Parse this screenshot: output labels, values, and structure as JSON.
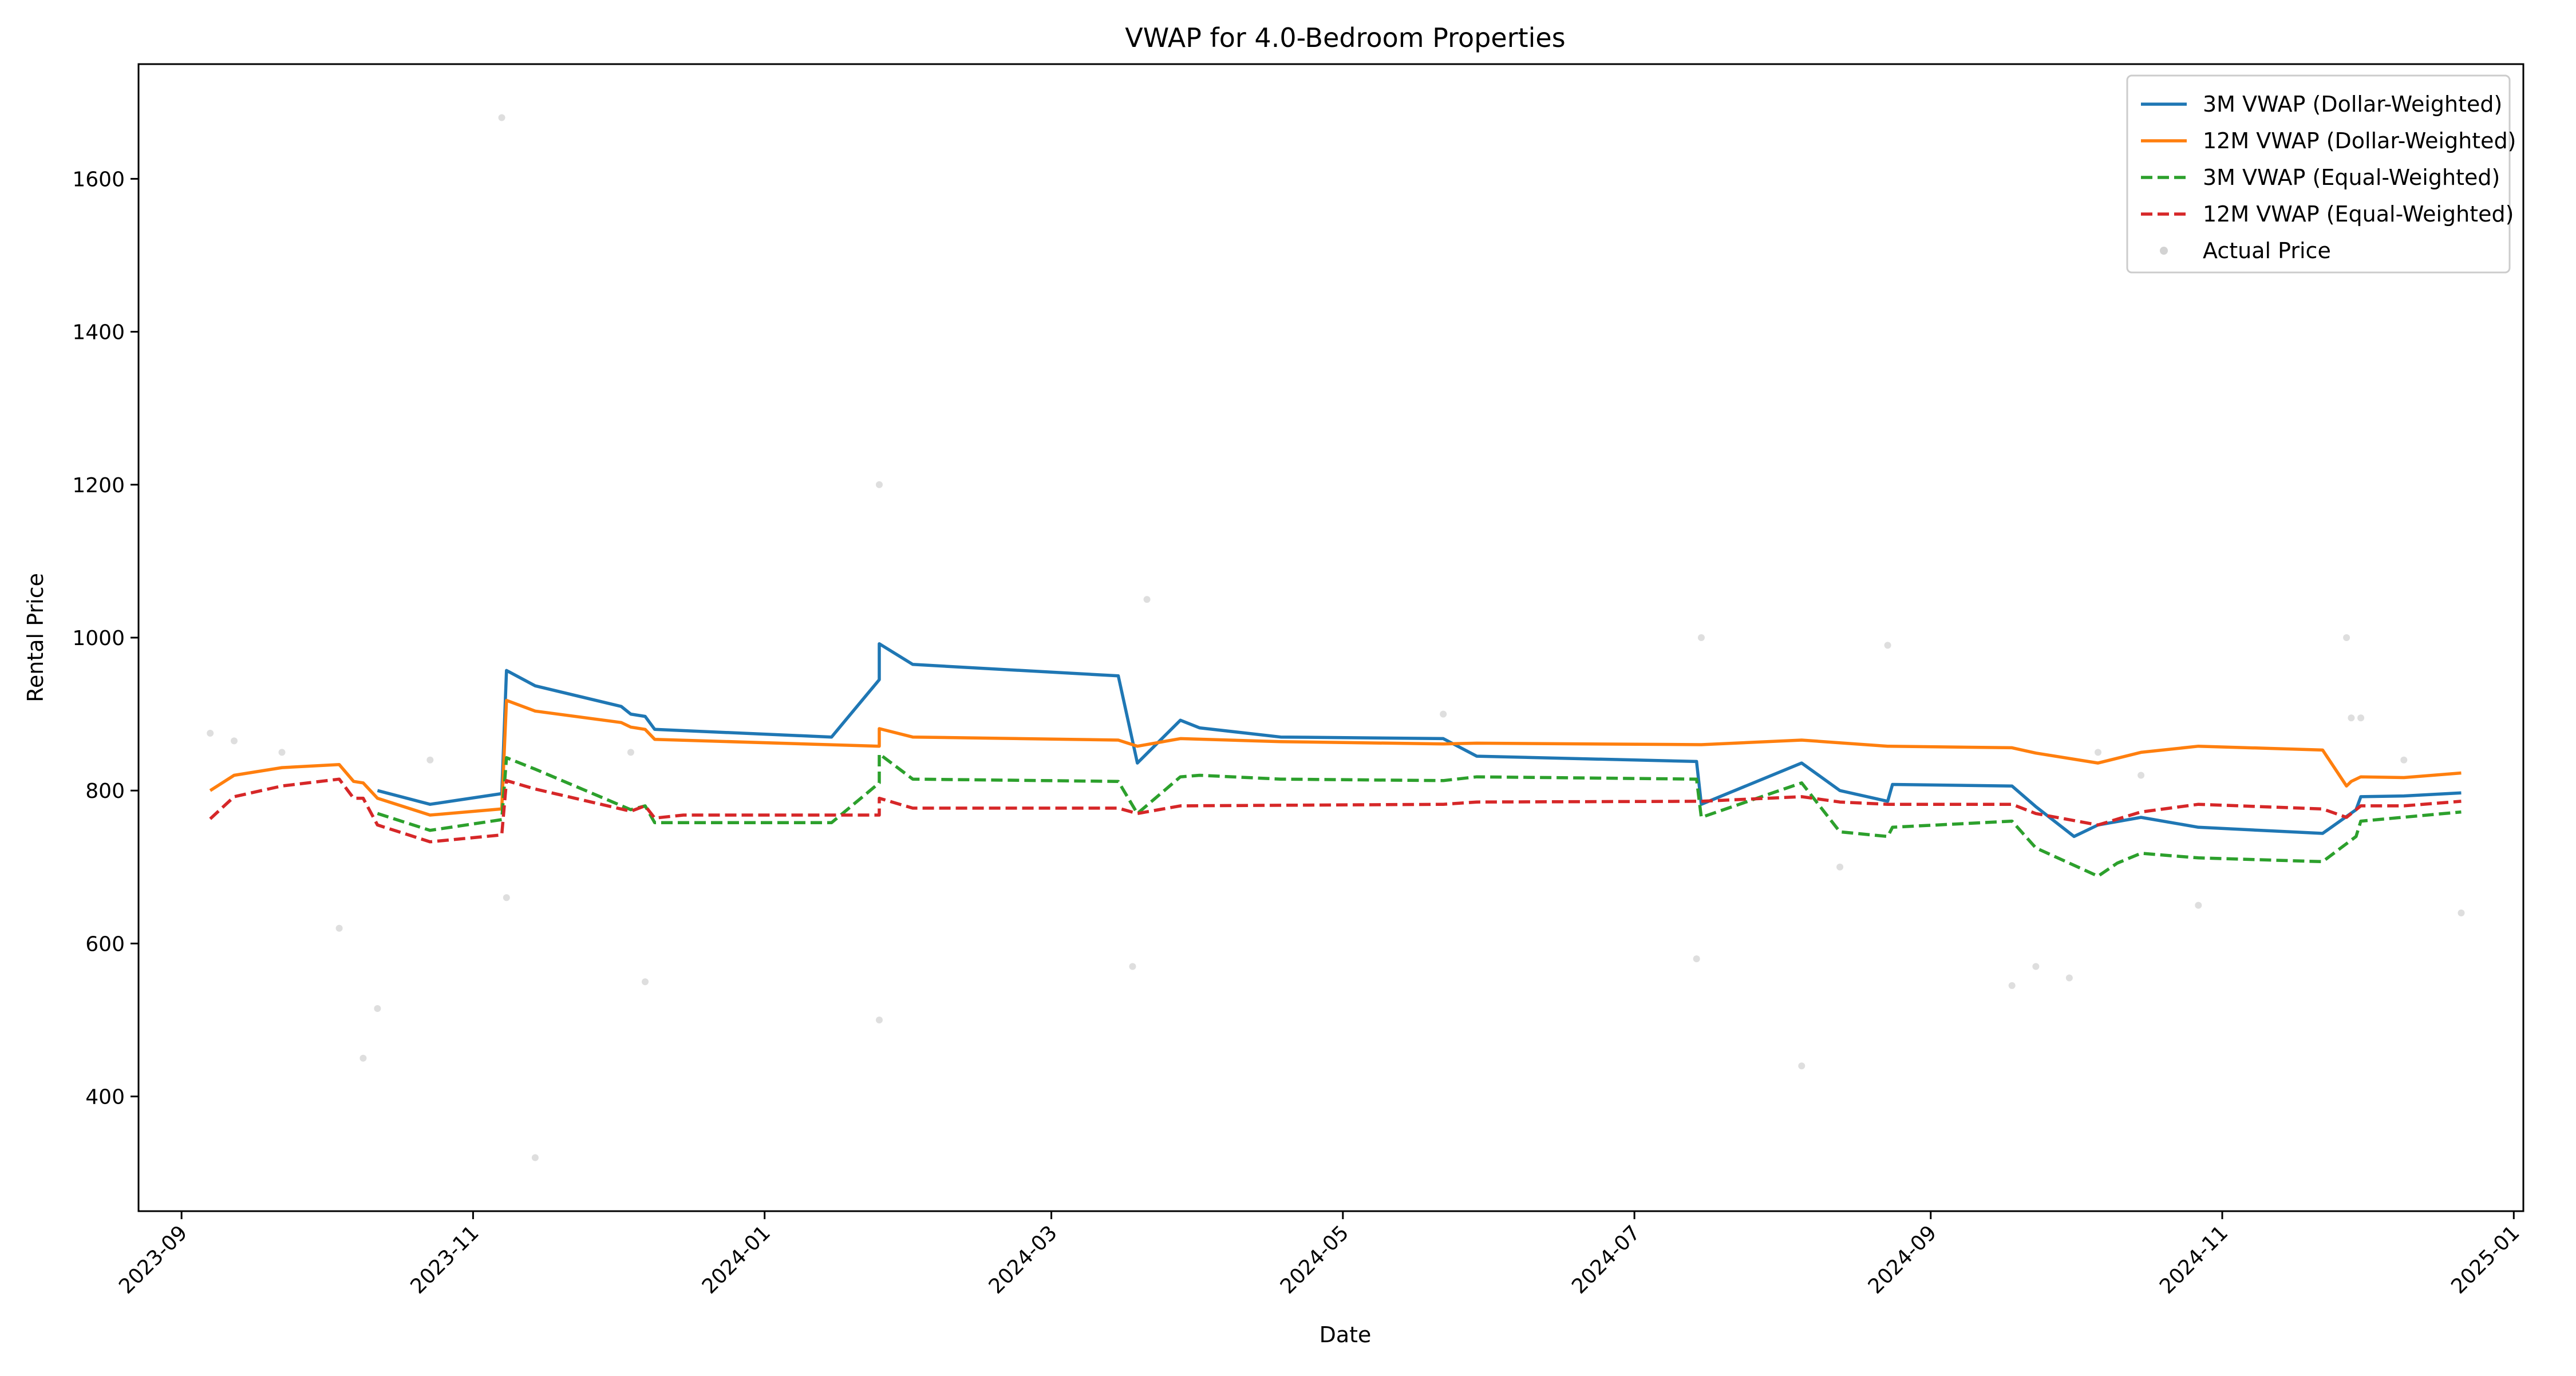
{
  "chart_data": {
    "type": "line",
    "title": "VWAP for 4.0-Bedroom Properties",
    "xlabel": "Date",
    "ylabel": "Rental Price",
    "x_axis_type": "date",
    "xlim": [
      "2023-08-23",
      "2025-01-03"
    ],
    "ylim": [
      250,
      1750
    ],
    "x_ticks": [
      "2023-09",
      "2023-11",
      "2024-01",
      "2024-03",
      "2024-05",
      "2024-07",
      "2024-09",
      "2024-11",
      "2025-01"
    ],
    "y_ticks": [
      400,
      600,
      800,
      1000,
      1200,
      1400,
      1600
    ],
    "grid": false,
    "legend_position": "top-right",
    "series": [
      {
        "name": "3M VWAP (Dollar-Weighted)",
        "style": "solid",
        "color": "#1f77b4",
        "points": [
          [
            "2023-10-12",
            800
          ],
          [
            "2023-10-23",
            782
          ],
          [
            "2023-11-07",
            796
          ],
          [
            "2023-11-08",
            957
          ],
          [
            "2023-11-14",
            937
          ],
          [
            "2023-12-02",
            910
          ],
          [
            "2023-12-04",
            900
          ],
          [
            "2023-12-07",
            897
          ],
          [
            "2023-12-09",
            880
          ],
          [
            "2024-01-15",
            870
          ],
          [
            "2024-01-25",
            945
          ],
          [
            "2024-01-25",
            992
          ],
          [
            "2024-02-01",
            965
          ],
          [
            "2024-03-15",
            950
          ],
          [
            "2024-03-19",
            836
          ],
          [
            "2024-03-28",
            892
          ],
          [
            "2024-04-01",
            882
          ],
          [
            "2024-04-18",
            870
          ],
          [
            "2024-05-22",
            868
          ],
          [
            "2024-05-29",
            845
          ],
          [
            "2024-07-14",
            838
          ],
          [
            "2024-07-15",
            782
          ],
          [
            "2024-08-05",
            836
          ],
          [
            "2024-08-13",
            800
          ],
          [
            "2024-08-23",
            786
          ],
          [
            "2024-08-24",
            808
          ],
          [
            "2024-09-18",
            806
          ],
          [
            "2024-09-23",
            779
          ],
          [
            "2024-10-01",
            740
          ],
          [
            "2024-10-06",
            755
          ],
          [
            "2024-10-15",
            765
          ],
          [
            "2024-10-27",
            752
          ],
          [
            "2024-11-22",
            744
          ],
          [
            "2024-11-29",
            775
          ],
          [
            "2024-11-30",
            792
          ],
          [
            "2024-12-09",
            793
          ],
          [
            "2024-12-21",
            797
          ]
        ]
      },
      {
        "name": "12M VWAP (Dollar-Weighted)",
        "style": "solid",
        "color": "#ff7f0e",
        "points": [
          [
            "2023-09-07",
            800
          ],
          [
            "2023-09-12",
            820
          ],
          [
            "2023-09-22",
            830
          ],
          [
            "2023-10-04",
            834
          ],
          [
            "2023-10-07",
            812
          ],
          [
            "2023-10-09",
            810
          ],
          [
            "2023-10-12",
            790
          ],
          [
            "2023-10-23",
            768
          ],
          [
            "2023-11-07",
            776
          ],
          [
            "2023-11-08",
            918
          ],
          [
            "2023-11-14",
            904
          ],
          [
            "2023-12-02",
            889
          ],
          [
            "2023-12-04",
            883
          ],
          [
            "2023-12-07",
            880
          ],
          [
            "2023-12-09",
            867
          ],
          [
            "2024-01-25",
            858
          ],
          [
            "2024-01-25",
            881
          ],
          [
            "2024-02-01",
            870
          ],
          [
            "2024-03-15",
            866
          ],
          [
            "2024-03-19",
            858
          ],
          [
            "2024-03-28",
            868
          ],
          [
            "2024-04-18",
            864
          ],
          [
            "2024-05-22",
            861
          ],
          [
            "2024-05-29",
            862
          ],
          [
            "2024-07-15",
            860
          ],
          [
            "2024-08-05",
            866
          ],
          [
            "2024-08-23",
            858
          ],
          [
            "2024-09-18",
            856
          ],
          [
            "2024-09-23",
            849
          ],
          [
            "2024-10-06",
            836
          ],
          [
            "2024-10-15",
            850
          ],
          [
            "2024-10-27",
            858
          ],
          [
            "2024-11-22",
            853
          ],
          [
            "2024-11-27",
            806
          ],
          [
            "2024-11-28",
            812
          ],
          [
            "2024-11-30",
            818
          ],
          [
            "2024-12-09",
            817
          ],
          [
            "2024-12-21",
            823
          ]
        ]
      },
      {
        "name": "3M VWAP (Equal-Weighted)",
        "style": "dashed",
        "color": "#2ca02c",
        "points": [
          [
            "2023-10-12",
            770
          ],
          [
            "2023-10-23",
            748
          ],
          [
            "2023-11-07",
            762
          ],
          [
            "2023-11-08",
            843
          ],
          [
            "2023-11-14",
            828
          ],
          [
            "2023-12-04",
            775
          ],
          [
            "2023-12-07",
            780
          ],
          [
            "2023-12-09",
            758
          ],
          [
            "2024-01-15",
            758
          ],
          [
            "2024-01-25",
            810
          ],
          [
            "2024-01-25",
            848
          ],
          [
            "2024-02-01",
            815
          ],
          [
            "2024-03-15",
            812
          ],
          [
            "2024-03-19",
            770
          ],
          [
            "2024-03-28",
            818
          ],
          [
            "2024-04-01",
            820
          ],
          [
            "2024-04-18",
            815
          ],
          [
            "2024-05-22",
            813
          ],
          [
            "2024-05-29",
            818
          ],
          [
            "2024-07-14",
            815
          ],
          [
            "2024-07-15",
            765
          ],
          [
            "2024-08-05",
            810
          ],
          [
            "2024-08-13",
            746
          ],
          [
            "2024-08-23",
            740
          ],
          [
            "2024-08-24",
            752
          ],
          [
            "2024-09-18",
            760
          ],
          [
            "2024-09-23",
            725
          ],
          [
            "2024-10-06",
            688
          ],
          [
            "2024-10-10",
            705
          ],
          [
            "2024-10-15",
            718
          ],
          [
            "2024-10-27",
            712
          ],
          [
            "2024-11-22",
            707
          ],
          [
            "2024-11-29",
            740
          ],
          [
            "2024-11-30",
            760
          ],
          [
            "2024-12-21",
            772
          ]
        ]
      },
      {
        "name": "12M VWAP (Equal-Weighted)",
        "style": "dashed",
        "color": "#d62728",
        "points": [
          [
            "2023-09-07",
            763
          ],
          [
            "2023-09-12",
            792
          ],
          [
            "2023-09-22",
            806
          ],
          [
            "2023-10-04",
            815
          ],
          [
            "2023-10-07",
            790
          ],
          [
            "2023-10-09",
            790
          ],
          [
            "2023-10-12",
            755
          ],
          [
            "2023-10-23",
            733
          ],
          [
            "2023-11-07",
            742
          ],
          [
            "2023-11-08",
            813
          ],
          [
            "2023-11-14",
            802
          ],
          [
            "2023-12-04",
            773
          ],
          [
            "2023-12-07",
            780
          ],
          [
            "2023-12-09",
            764
          ],
          [
            "2023-12-15",
            768
          ],
          [
            "2024-01-25",
            768
          ],
          [
            "2024-01-25",
            790
          ],
          [
            "2024-02-01",
            777
          ],
          [
            "2024-03-15",
            777
          ],
          [
            "2024-03-19",
            770
          ],
          [
            "2024-03-28",
            780
          ],
          [
            "2024-05-22",
            782
          ],
          [
            "2024-05-29",
            785
          ],
          [
            "2024-07-15",
            786
          ],
          [
            "2024-08-05",
            792
          ],
          [
            "2024-08-13",
            785
          ],
          [
            "2024-08-23",
            782
          ],
          [
            "2024-09-18",
            782
          ],
          [
            "2024-09-23",
            770
          ],
          [
            "2024-10-06",
            755
          ],
          [
            "2024-10-15",
            772
          ],
          [
            "2024-10-27",
            782
          ],
          [
            "2024-11-22",
            776
          ],
          [
            "2024-11-27",
            765
          ],
          [
            "2024-11-30",
            780
          ],
          [
            "2024-12-09",
            780
          ],
          [
            "2024-12-21",
            786
          ]
        ]
      }
    ],
    "scatter": {
      "name": "Actual Price",
      "color": "#d3d3d3",
      "points": [
        [
          "2023-09-07",
          875
        ],
        [
          "2023-09-12",
          865
        ],
        [
          "2023-09-22",
          850
        ],
        [
          "2023-10-04",
          620
        ],
        [
          "2023-10-09",
          450
        ],
        [
          "2023-10-12",
          515
        ],
        [
          "2023-10-23",
          840
        ],
        [
          "2023-11-07",
          1680
        ],
        [
          "2023-11-08",
          660
        ],
        [
          "2023-11-14",
          320
        ],
        [
          "2023-12-04",
          850
        ],
        [
          "2023-12-07",
          550
        ],
        [
          "2024-01-25",
          1200
        ],
        [
          "2024-01-25",
          500
        ],
        [
          "2024-03-18",
          570
        ],
        [
          "2024-03-21",
          1050
        ],
        [
          "2024-05-22",
          900
        ],
        [
          "2024-07-14",
          580
        ],
        [
          "2024-07-15",
          1000
        ],
        [
          "2024-08-05",
          440
        ],
        [
          "2024-08-13",
          700
        ],
        [
          "2024-08-23",
          990
        ],
        [
          "2024-09-18",
          545
        ],
        [
          "2024-09-23",
          570
        ],
        [
          "2024-09-30",
          555
        ],
        [
          "2024-10-06",
          850
        ],
        [
          "2024-10-15",
          820
        ],
        [
          "2024-10-27",
          650
        ],
        [
          "2024-11-27",
          1000
        ],
        [
          "2024-11-28",
          895
        ],
        [
          "2024-11-30",
          895
        ],
        [
          "2024-12-09",
          840
        ],
        [
          "2024-12-21",
          640
        ]
      ]
    }
  }
}
